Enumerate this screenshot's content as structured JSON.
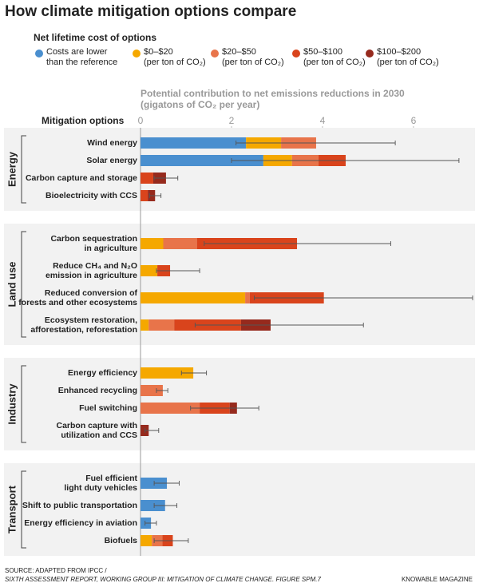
{
  "chart_data": {
    "type": "stacked-bar-horizontal",
    "title": "How climate mitigation options compare",
    "legend_title": "Net lifetime cost of options",
    "xlabel": "Potential contribution to net emissions reductions in 2030\n(gigatons of CO₂ per year)",
    "category_axis_label": "Mitigation options",
    "xlim": [
      0,
      7.3
    ],
    "xticks": [
      0,
      2,
      4,
      6
    ],
    "groups": [
      {
        "name": "Energy",
        "categories": [
          "Wind energy",
          "Solar energy",
          "Carbon capture and storage",
          "Bioelectricity with CCS"
        ],
        "ranges": [
          [
            2.1,
            5.6
          ],
          [
            2.0,
            7.0
          ],
          [
            0.3,
            0.82
          ],
          [
            0.2,
            0.45
          ]
        ]
      },
      {
        "name": "Land use",
        "categories": [
          "Carbon sequestration\nin agriculture",
          "Reduce CH₄ and N₂O\nemission in agriculture",
          "Reduced conversion of\nforests and other ecosystems",
          "Ecosystem restoration,\nafforestation, reforestation"
        ],
        "ranges": [
          [
            1.4,
            5.5
          ],
          [
            0.35,
            1.3
          ],
          [
            2.5,
            7.3
          ],
          [
            1.2,
            4.9
          ]
        ]
      },
      {
        "name": "Industry",
        "categories": [
          "Energy efficiency",
          "Enhanced recycling",
          "Fuel switching",
          "Carbon capture with\nutilization and CCS"
        ],
        "ranges": [
          [
            0.9,
            1.45
          ],
          [
            0.35,
            0.6
          ],
          [
            1.1,
            2.6
          ],
          [
            0.1,
            0.4
          ]
        ]
      },
      {
        "name": "Transport",
        "categories": [
          "Fuel efficient\nlight duty vehicles",
          "Shift to public transportation",
          "Energy efficiency in aviation",
          "Biofuels"
        ],
        "ranges": [
          [
            0.3,
            0.85
          ],
          [
            0.3,
            0.8
          ],
          [
            0.1,
            0.35
          ],
          [
            0.3,
            1.05
          ]
        ]
      }
    ],
    "series": [
      {
        "name": "Costs are lower\nthan the reference",
        "color": "#4a8fcf",
        "values": [
          [
            2.32,
            2.7,
            0,
            0
          ],
          [
            0,
            0,
            0,
            0
          ],
          [
            0,
            0,
            0,
            0
          ],
          [
            0.58,
            0.54,
            0.23,
            0
          ]
        ]
      },
      {
        "name": "$0–$20\n(per ton of CO₂)",
        "color": "#f5a800",
        "values": [
          [
            0.77,
            0.63,
            0,
            0
          ],
          [
            0.5,
            0.37,
            2.3,
            0.18
          ],
          [
            1.16,
            0,
            0,
            0
          ],
          [
            0,
            0,
            0,
            0.25
          ]
        ]
      },
      {
        "name": "$20–$50\n(per ton of CO₂)",
        "color": "#e8744a",
        "values": [
          [
            0.77,
            0.58,
            0,
            0
          ],
          [
            0.74,
            0,
            0.1,
            0.56
          ],
          [
            0,
            0.49,
            1.3,
            0
          ],
          [
            0,
            0,
            0,
            0.23
          ]
        ]
      },
      {
        "name": "$50–$100\n(per ton of CO₂)",
        "color": "#d9441c",
        "values": [
          [
            0,
            0.6,
            0.28,
            0.16
          ],
          [
            2.2,
            0.28,
            1.63,
            1.47
          ],
          [
            0,
            0,
            0.66,
            0
          ],
          [
            0,
            0,
            0,
            0.23
          ]
        ]
      },
      {
        "name": "$100–$200\n(per ton of CO₂)",
        "color": "#962a1d",
        "values": [
          [
            0,
            0,
            0.28,
            0.16
          ],
          [
            0,
            0,
            0,
            0.65
          ],
          [
            0,
            0,
            0.16,
            0.18
          ],
          [
            0,
            0,
            0,
            0
          ]
        ]
      }
    ],
    "source": [
      "SOURCE: ADAPTED FROM IPCC /",
      "SIXTH ASSESSMENT REPORT, WORKING GROUP III: MITIGATION OF CLIMATE CHANGE. FIGURE SPM.7"
    ],
    "credit": "KNOWABLE MAGAZINE"
  }
}
